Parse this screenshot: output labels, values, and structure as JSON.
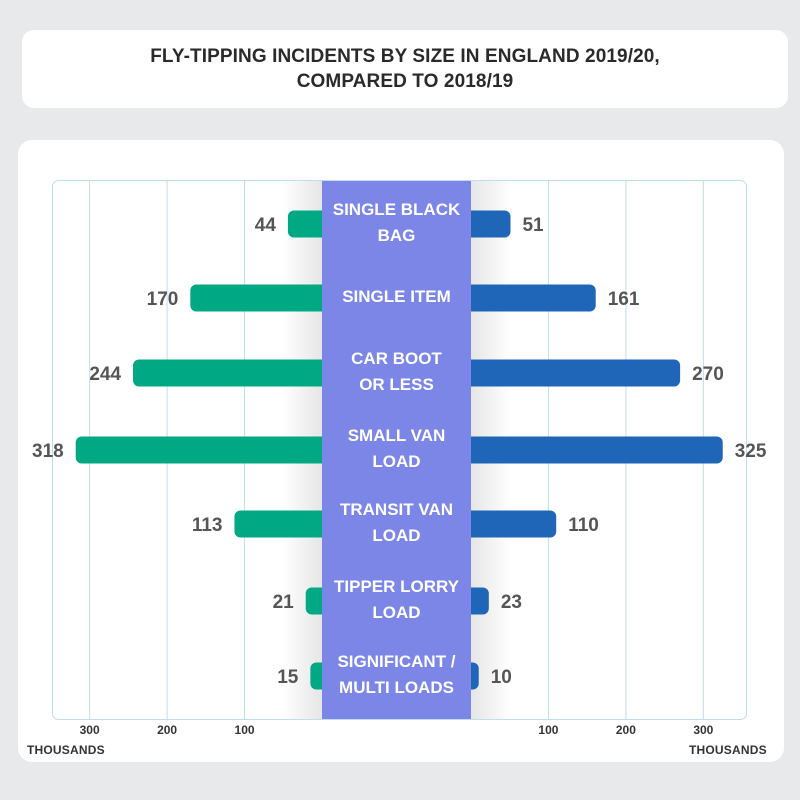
{
  "title": {
    "line1": "FLY-TIPPING INCIDENTS BY SIZE IN ENGLAND 2019/20,",
    "line2": "COMPARED TO 2018/19"
  },
  "colors": {
    "left_series": "#00a884",
    "right_series": "#1f66b8",
    "category_band": "#7b86e6",
    "grid": "#bfdff0",
    "value_text": "#555555",
    "category_text": "#ffffff"
  },
  "axis": {
    "unit_left": "THOUSANDS",
    "unit_right": "THOUSANDS",
    "left_ticks": [
      "300",
      "200",
      "100"
    ],
    "right_ticks": [
      "100",
      "200",
      "300"
    ]
  },
  "chart_data": {
    "type": "bar",
    "orientation": "horizontal-butterfly",
    "title": "FLY-TIPPING INCIDENTS BY SIZE IN ENGLAND 2019/20, COMPARED TO 2018/19",
    "categories": [
      [
        "SINGLE BLACK",
        "BAG"
      ],
      [
        "SINGLE ITEM"
      ],
      [
        "CAR BOOT",
        "OR LESS"
      ],
      [
        "SMALL VAN",
        "LOAD"
      ],
      [
        "TRANSIT VAN",
        "LOAD"
      ],
      [
        "TIPPER LORRY",
        "LOAD"
      ],
      [
        "SIGNIFICANT /",
        "MULTI LOADS"
      ]
    ],
    "series": [
      {
        "side": "left",
        "values": [
          44,
          170,
          244,
          318,
          113,
          21,
          15
        ]
      },
      {
        "side": "right",
        "values": [
          51,
          161,
          270,
          325,
          110,
          23,
          10
        ]
      }
    ],
    "xlim": [
      0,
      325
    ],
    "xticks": [
      100,
      200,
      300
    ],
    "grid": true,
    "unit": "THOUSANDS"
  }
}
